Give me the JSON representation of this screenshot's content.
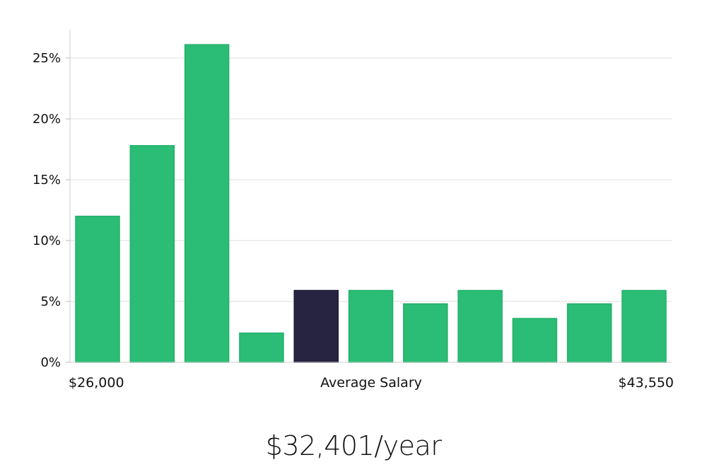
{
  "chart_data": {
    "type": "bar",
    "bin_values": [
      12,
      17.8,
      26.1,
      2.4,
      5.9,
      5.9,
      4.8,
      5.9,
      3.6,
      4.8,
      5.9
    ],
    "highlight_index": 4,
    "ylim": [
      0,
      27.5
    ],
    "y_ticks": [
      "0%",
      "5%",
      "10%",
      "15%",
      "20%",
      "25%"
    ],
    "y_tick_values": [
      0,
      5,
      10,
      15,
      20,
      25
    ],
    "x_min_label": "$26,000",
    "x_center_label": "Average Salary",
    "x_max_label": "$43,550",
    "bar_color": "#2bbd75",
    "highlight_color": "#272442",
    "grid": true
  },
  "summary": {
    "salary": "$32,401/year"
  }
}
